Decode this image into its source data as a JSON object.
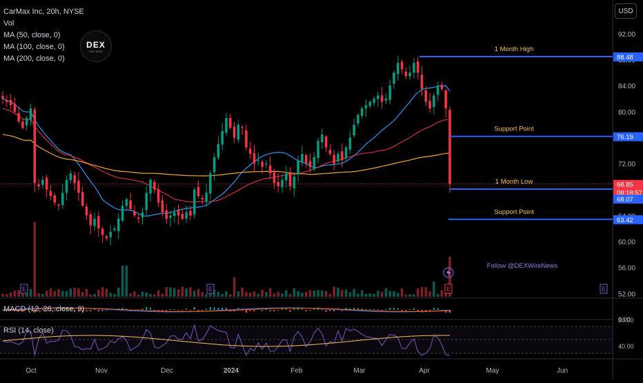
{
  "header": {
    "title_line": "CarMax Inc, 20h, NYSE",
    "indicators": [
      "Vol",
      "MA (50, close, 0)",
      "MA (100, close, 0)",
      "MA (200, close, 0)"
    ],
    "currency": "USD",
    "logo_text": "DEX",
    "logo_sub": "DEX WIRE"
  },
  "price_axis": {
    "ticks": [
      "92.00",
      "88.00",
      "84.00",
      "80.00",
      "76.00",
      "72.00",
      "68.00",
      "64.00",
      "60.00",
      "56.00",
      "52.00"
    ],
    "tick_values": [
      92,
      88,
      84,
      80,
      76,
      72,
      68,
      64,
      60,
      56,
      52
    ],
    "min": 51.5,
    "max": 94
  },
  "price_tags": [
    {
      "text": "88.48",
      "value": 88.48,
      "color": "#2962ff"
    },
    {
      "text": "76.19",
      "value": 76.19,
      "color": "#2962ff"
    },
    {
      "text": "68.85",
      "value": 68.85,
      "color": "#f23645"
    },
    {
      "text": "08:18:57",
      "value": 68.85,
      "color": "#f23645"
    },
    {
      "text": "68.07",
      "value": 68.07,
      "color": "#2962ff"
    },
    {
      "text": "63.42",
      "value": 63.42,
      "color": "#2962ff"
    }
  ],
  "levels": [
    {
      "label": "1 Month High",
      "value": 88.48
    },
    {
      "label": "Support Point",
      "value": 76.19
    },
    {
      "label": "1 Month Low",
      "value": 68.07
    },
    {
      "label": "Support Point",
      "value": 63.42
    }
  ],
  "annotation": "Follow @DEXWireNews",
  "time_axis": [
    "Oct",
    "Nov",
    "Dec",
    "2024",
    "Feb",
    "Mar",
    "Apr",
    "May",
    "Jun"
  ],
  "earnings_marker": "E",
  "macd": {
    "label": "MACD (12, 26, close, 9)",
    "axis_tick": "0.00"
  },
  "rsi": {
    "label": "RSI (14, close)",
    "ticks": [
      "60.00",
      "40.00"
    ]
  },
  "colors": {
    "up": "#089981",
    "down": "#f23645",
    "upvol": "#0b5a4f",
    "downvol": "#7a2226",
    "level": "#2962ff",
    "level_label": "#f7c35c",
    "ma50": "#2f96f0",
    "ma100": "#f2a838",
    "ma200": "#d32f3c",
    "rsi": "#7e57c2",
    "annotation": "#9c7be0"
  },
  "chart_data": {
    "type": "candlestick",
    "title": "CarMax Inc, 20h, NYSE",
    "ylim": [
      51.5,
      94
    ],
    "x_ticks": [
      "Oct",
      "Nov",
      "Dec",
      "2024",
      "Feb",
      "Mar",
      "Apr",
      "May",
      "Jun"
    ],
    "last_price": 68.85,
    "close": [
      82.0,
      81.5,
      81.0,
      80.0,
      78.5,
      77.5,
      79.0,
      80.5,
      69.0,
      68.5,
      69.5,
      68.0,
      67.0,
      66.0,
      65.5,
      67.5,
      69.5,
      70.5,
      69.0,
      67.5,
      65.5,
      64.0,
      62.5,
      63.5,
      62.0,
      61.0,
      60.5,
      61.5,
      62.0,
      63.5,
      65.5,
      66.5,
      65.0,
      64.0,
      63.5,
      64.5,
      67.5,
      69.5,
      68.0,
      66.0,
      64.5,
      63.5,
      64.0,
      64.5,
      64.0,
      63.5,
      64.5,
      64.0,
      68.0,
      67.0,
      66.5,
      67.5,
      70.5,
      73.0,
      75.0,
      77.0,
      79.0,
      77.5,
      76.0,
      78.0,
      77.5,
      74.5,
      73.5,
      72.0,
      72.5,
      71.5,
      72.0,
      70.5,
      69.0,
      68.5,
      69.5,
      70.5,
      68.5,
      70.0,
      72.5,
      73.5,
      72.0,
      71.5,
      73.0,
      75.5,
      76.5,
      74.5,
      73.5,
      72.0,
      73.5,
      72.5,
      74.5,
      76.0,
      78.0,
      79.5,
      80.5,
      81.0,
      81.5,
      82.0,
      82.5,
      81.5,
      82.0,
      84.0,
      86.0,
      87.5,
      86.5,
      85.5,
      86.0,
      87.5,
      86.0,
      83.5,
      81.5,
      80.5,
      82.5,
      84.0,
      83.5,
      80.5,
      68.85
    ]
  }
}
